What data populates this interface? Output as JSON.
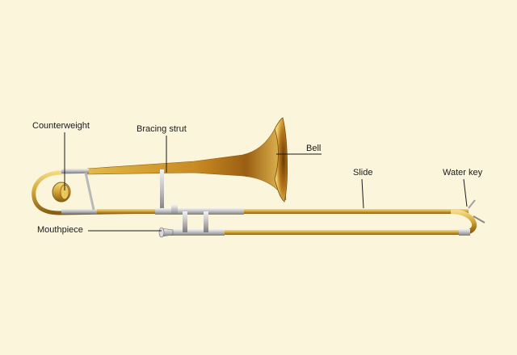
{
  "diagram": {
    "labels": {
      "counterweight": "Counterweight",
      "bracing_strut": "Bracing strut",
      "bell": "Bell",
      "slide": "Slide",
      "water_key": "Water key",
      "mouthpiece": "Mouthpiece"
    }
  },
  "colors": {
    "background": "#fbf5dc",
    "brass": "#d6a93a",
    "brass_dark": "#8a5d12",
    "silver": "#c9c9c9",
    "leader_line": "#1a1a1a"
  }
}
